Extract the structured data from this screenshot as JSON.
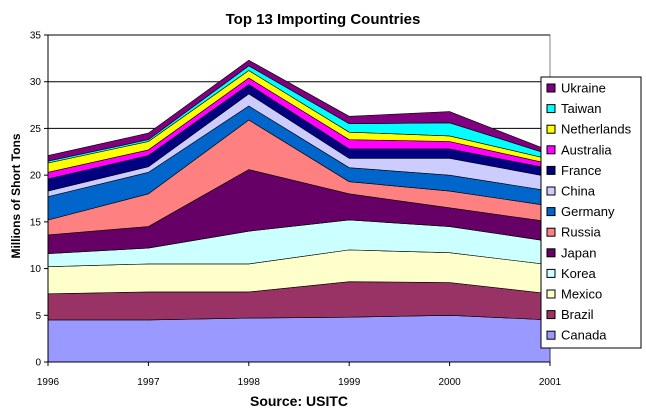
{
  "chart_data": {
    "type": "area",
    "stacked": true,
    "title": "Top 13 Importing Countries",
    "ylabel": "Millions of Short Tons",
    "xlabel": "Source: USITC",
    "x": [
      1996,
      1997,
      1998,
      1999,
      2000,
      2001
    ],
    "x_tick_labels": [
      "1996",
      "1997",
      "1998",
      "1999",
      "2000",
      "2001"
    ],
    "ylim": [
      0,
      35
    ],
    "y_ticks": [
      0,
      5,
      10,
      15,
      20,
      25,
      30,
      35
    ],
    "y_tick_labels": [
      "0",
      "5",
      "10",
      "15",
      "20",
      "25",
      "30",
      "35"
    ],
    "grid": {
      "horizontal": true,
      "vertical": false
    },
    "legend_position": "right",
    "series": [
      {
        "name": "Canada",
        "color": "#9999ff",
        "values": [
          4.5,
          4.5,
          4.7,
          4.8,
          5.0,
          4.5
        ]
      },
      {
        "name": "Brazil",
        "color": "#993366",
        "values": [
          2.8,
          3.0,
          2.8,
          3.8,
          3.5,
          2.8
        ]
      },
      {
        "name": "Mexico",
        "color": "#ffffcc",
        "values": [
          2.9,
          3.0,
          3.0,
          3.4,
          3.2,
          3.1
        ]
      },
      {
        "name": "Korea",
        "color": "#ccffff",
        "values": [
          1.4,
          1.7,
          3.5,
          3.2,
          2.8,
          2.5
        ]
      },
      {
        "name": "Japan",
        "color": "#660066",
        "values": [
          2.0,
          2.3,
          6.6,
          2.8,
          2.0,
          2.1
        ]
      },
      {
        "name": "Russia",
        "color": "#ff8080",
        "values": [
          1.6,
          3.5,
          5.3,
          1.3,
          1.8,
          1.7
        ]
      },
      {
        "name": "Germany",
        "color": "#0066cc",
        "values": [
          2.5,
          2.3,
          1.5,
          1.5,
          1.7,
          1.6
        ]
      },
      {
        "name": "China",
        "color": "#ccccff",
        "values": [
          0.6,
          0.6,
          1.3,
          1.0,
          1.8,
          1.5
        ]
      },
      {
        "name": "France",
        "color": "#000080",
        "values": [
          1.3,
          1.2,
          1.0,
          1.0,
          1.0,
          0.9
        ]
      },
      {
        "name": "Australia",
        "color": "#ff00ff",
        "values": [
          0.7,
          0.6,
          0.7,
          1.0,
          0.8,
          0.5
        ]
      },
      {
        "name": "Netherlands",
        "color": "#ffff00",
        "values": [
          1.0,
          0.9,
          0.8,
          0.8,
          0.6,
          0.5
        ]
      },
      {
        "name": "Taiwan",
        "color": "#00ffff",
        "values": [
          0.2,
          0.2,
          0.5,
          0.9,
          1.4,
          0.5
        ]
      },
      {
        "name": "Ukraine",
        "color": "#800080",
        "values": [
          0.6,
          0.7,
          0.6,
          0.8,
          1.2,
          0.4
        ]
      }
    ]
  }
}
